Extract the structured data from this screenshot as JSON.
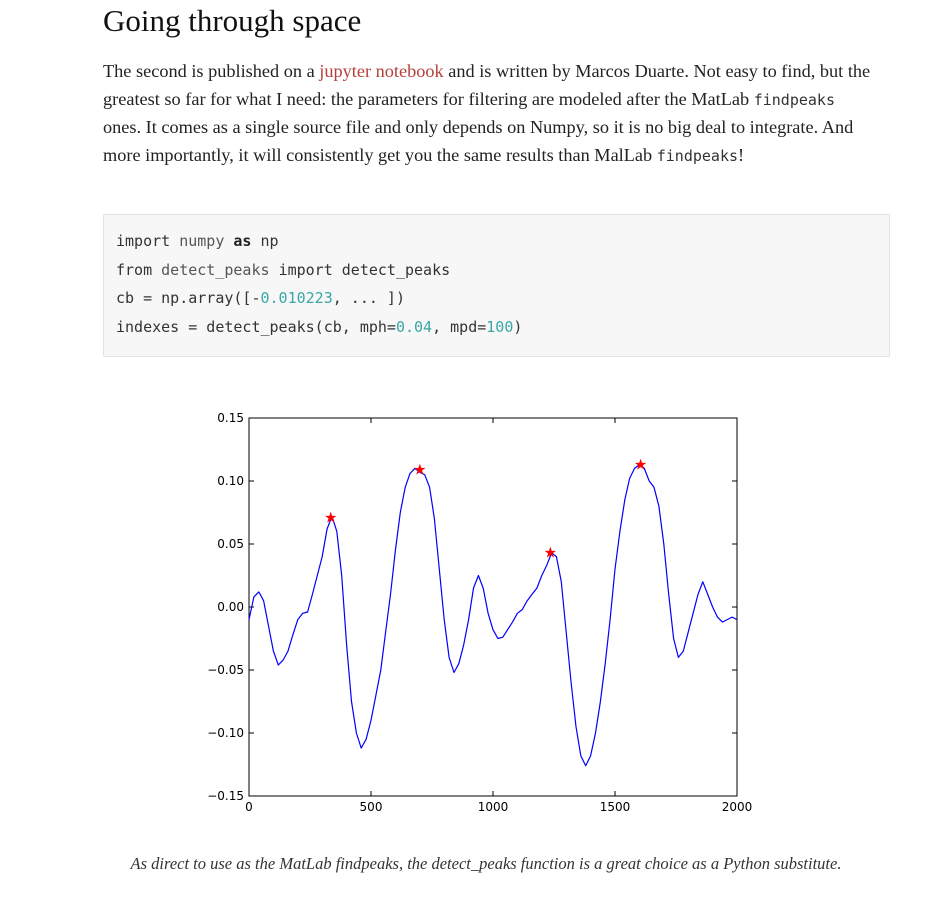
{
  "article": {
    "title": "Going through space",
    "paragraph": {
      "p1": "The second is published on a ",
      "link": "jupyter notebook",
      "p2": " and is written by Marcos Duarte. Not easy to find, but the greatest so far for what I need: the parameters for filtering are modeled after the MatLab ",
      "code1": "findpeaks",
      "p3": " ones. It comes as a single source file and only depends on Numpy, so it is no big deal to integrate. And more importantly, it will consistently get you the same results than MalLab ",
      "code2": "findpeaks",
      "p4": "!"
    },
    "code": {
      "l1_kw1": "import",
      "l1_mod": "numpy",
      "l1_as": "as",
      "l1_alias": "np",
      "l2_kw1": "from",
      "l2_mod": "detect_peaks",
      "l2_kw2": "import",
      "l2_name": "detect_peaks",
      "l3_pre": "cb = np.array([-",
      "l3_num": "0.010223",
      "l3_post": ", ... ])",
      "l4_pre": "indexes = detect_peaks(cb, mph=",
      "l4_num1": "0.04",
      "l4_mid": ", mpd=",
      "l4_num2": "100",
      "l4_post": ")"
    },
    "caption": "As direct to use as the MatLab findpeaks, the detect_peaks function is a great choice as a Python substitute."
  },
  "chart_data": {
    "type": "line",
    "xlim": [
      0,
      2000
    ],
    "ylim": [
      -0.15,
      0.15
    ],
    "xticks": [
      0,
      500,
      1000,
      1500,
      2000
    ],
    "xtick_labels": [
      "0",
      "500",
      "1000",
      "1500",
      "2000"
    ],
    "yticks": [
      0.15,
      0.1,
      0.05,
      0.0,
      -0.05,
      -0.1,
      -0.15
    ],
    "ytick_labels": [
      "0.15",
      "0.10",
      "0.05",
      "0.00",
      "−0.05",
      "−0.10",
      "−0.15"
    ],
    "grid": false,
    "line_color": "#0000ff",
    "peak_color": "#ff0000",
    "series": [
      {
        "x": [
          0,
          20,
          40,
          60,
          80,
          100,
          120,
          140,
          160,
          180,
          200,
          220,
          240,
          260,
          280,
          300,
          320,
          340,
          360,
          380,
          400,
          420,
          440,
          460,
          480,
          500,
          520,
          540,
          560,
          580,
          600,
          620,
          640,
          660,
          680,
          700,
          720,
          740,
          760,
          780,
          800,
          820,
          840,
          860,
          880,
          900,
          920,
          940,
          960,
          980,
          1000,
          1020,
          1040,
          1060,
          1080,
          1100,
          1120,
          1140,
          1160,
          1180,
          1200,
          1220,
          1240,
          1260,
          1280,
          1300,
          1320,
          1340,
          1360,
          1380,
          1400,
          1420,
          1440,
          1460,
          1480,
          1500,
          1520,
          1540,
          1560,
          1580,
          1600,
          1620,
          1640,
          1660,
          1680,
          1700,
          1720,
          1740,
          1760,
          1780,
          1800,
          1820,
          1840,
          1860,
          1880,
          1900,
          1920,
          1940,
          1960,
          1980,
          2000
        ],
        "y": [
          -0.01,
          0.008,
          0.012,
          0.005,
          -0.015,
          -0.035,
          -0.046,
          -0.042,
          -0.035,
          -0.022,
          -0.01,
          -0.005,
          -0.004,
          0.01,
          0.025,
          0.04,
          0.062,
          0.072,
          0.06,
          0.025,
          -0.03,
          -0.075,
          -0.1,
          -0.112,
          -0.105,
          -0.09,
          -0.07,
          -0.05,
          -0.02,
          0.01,
          0.045,
          0.075,
          0.095,
          0.106,
          0.11,
          0.107,
          0.105,
          0.095,
          0.07,
          0.03,
          -0.01,
          -0.04,
          -0.052,
          -0.045,
          -0.03,
          -0.01,
          0.015,
          0.025,
          0.015,
          -0.005,
          -0.018,
          -0.025,
          -0.024,
          -0.018,
          -0.012,
          -0.005,
          -0.002,
          0.005,
          0.01,
          0.015,
          0.025,
          0.033,
          0.043,
          0.04,
          0.02,
          -0.02,
          -0.06,
          -0.095,
          -0.118,
          -0.126,
          -0.118,
          -0.1,
          -0.075,
          -0.045,
          -0.01,
          0.03,
          0.06,
          0.085,
          0.102,
          0.11,
          0.113,
          0.11,
          0.1,
          0.095,
          0.08,
          0.05,
          0.01,
          -0.025,
          -0.04,
          -0.035,
          -0.02,
          -0.005,
          0.01,
          0.02,
          0.01,
          0.0,
          -0.008,
          -0.012,
          -0.01,
          -0.008,
          -0.01
        ]
      }
    ],
    "peaks": [
      {
        "x": 335,
        "y": 0.072
      },
      {
        "x": 700,
        "y": 0.11
      },
      {
        "x": 1235,
        "y": 0.044
      },
      {
        "x": 1605,
        "y": 0.114
      }
    ]
  }
}
